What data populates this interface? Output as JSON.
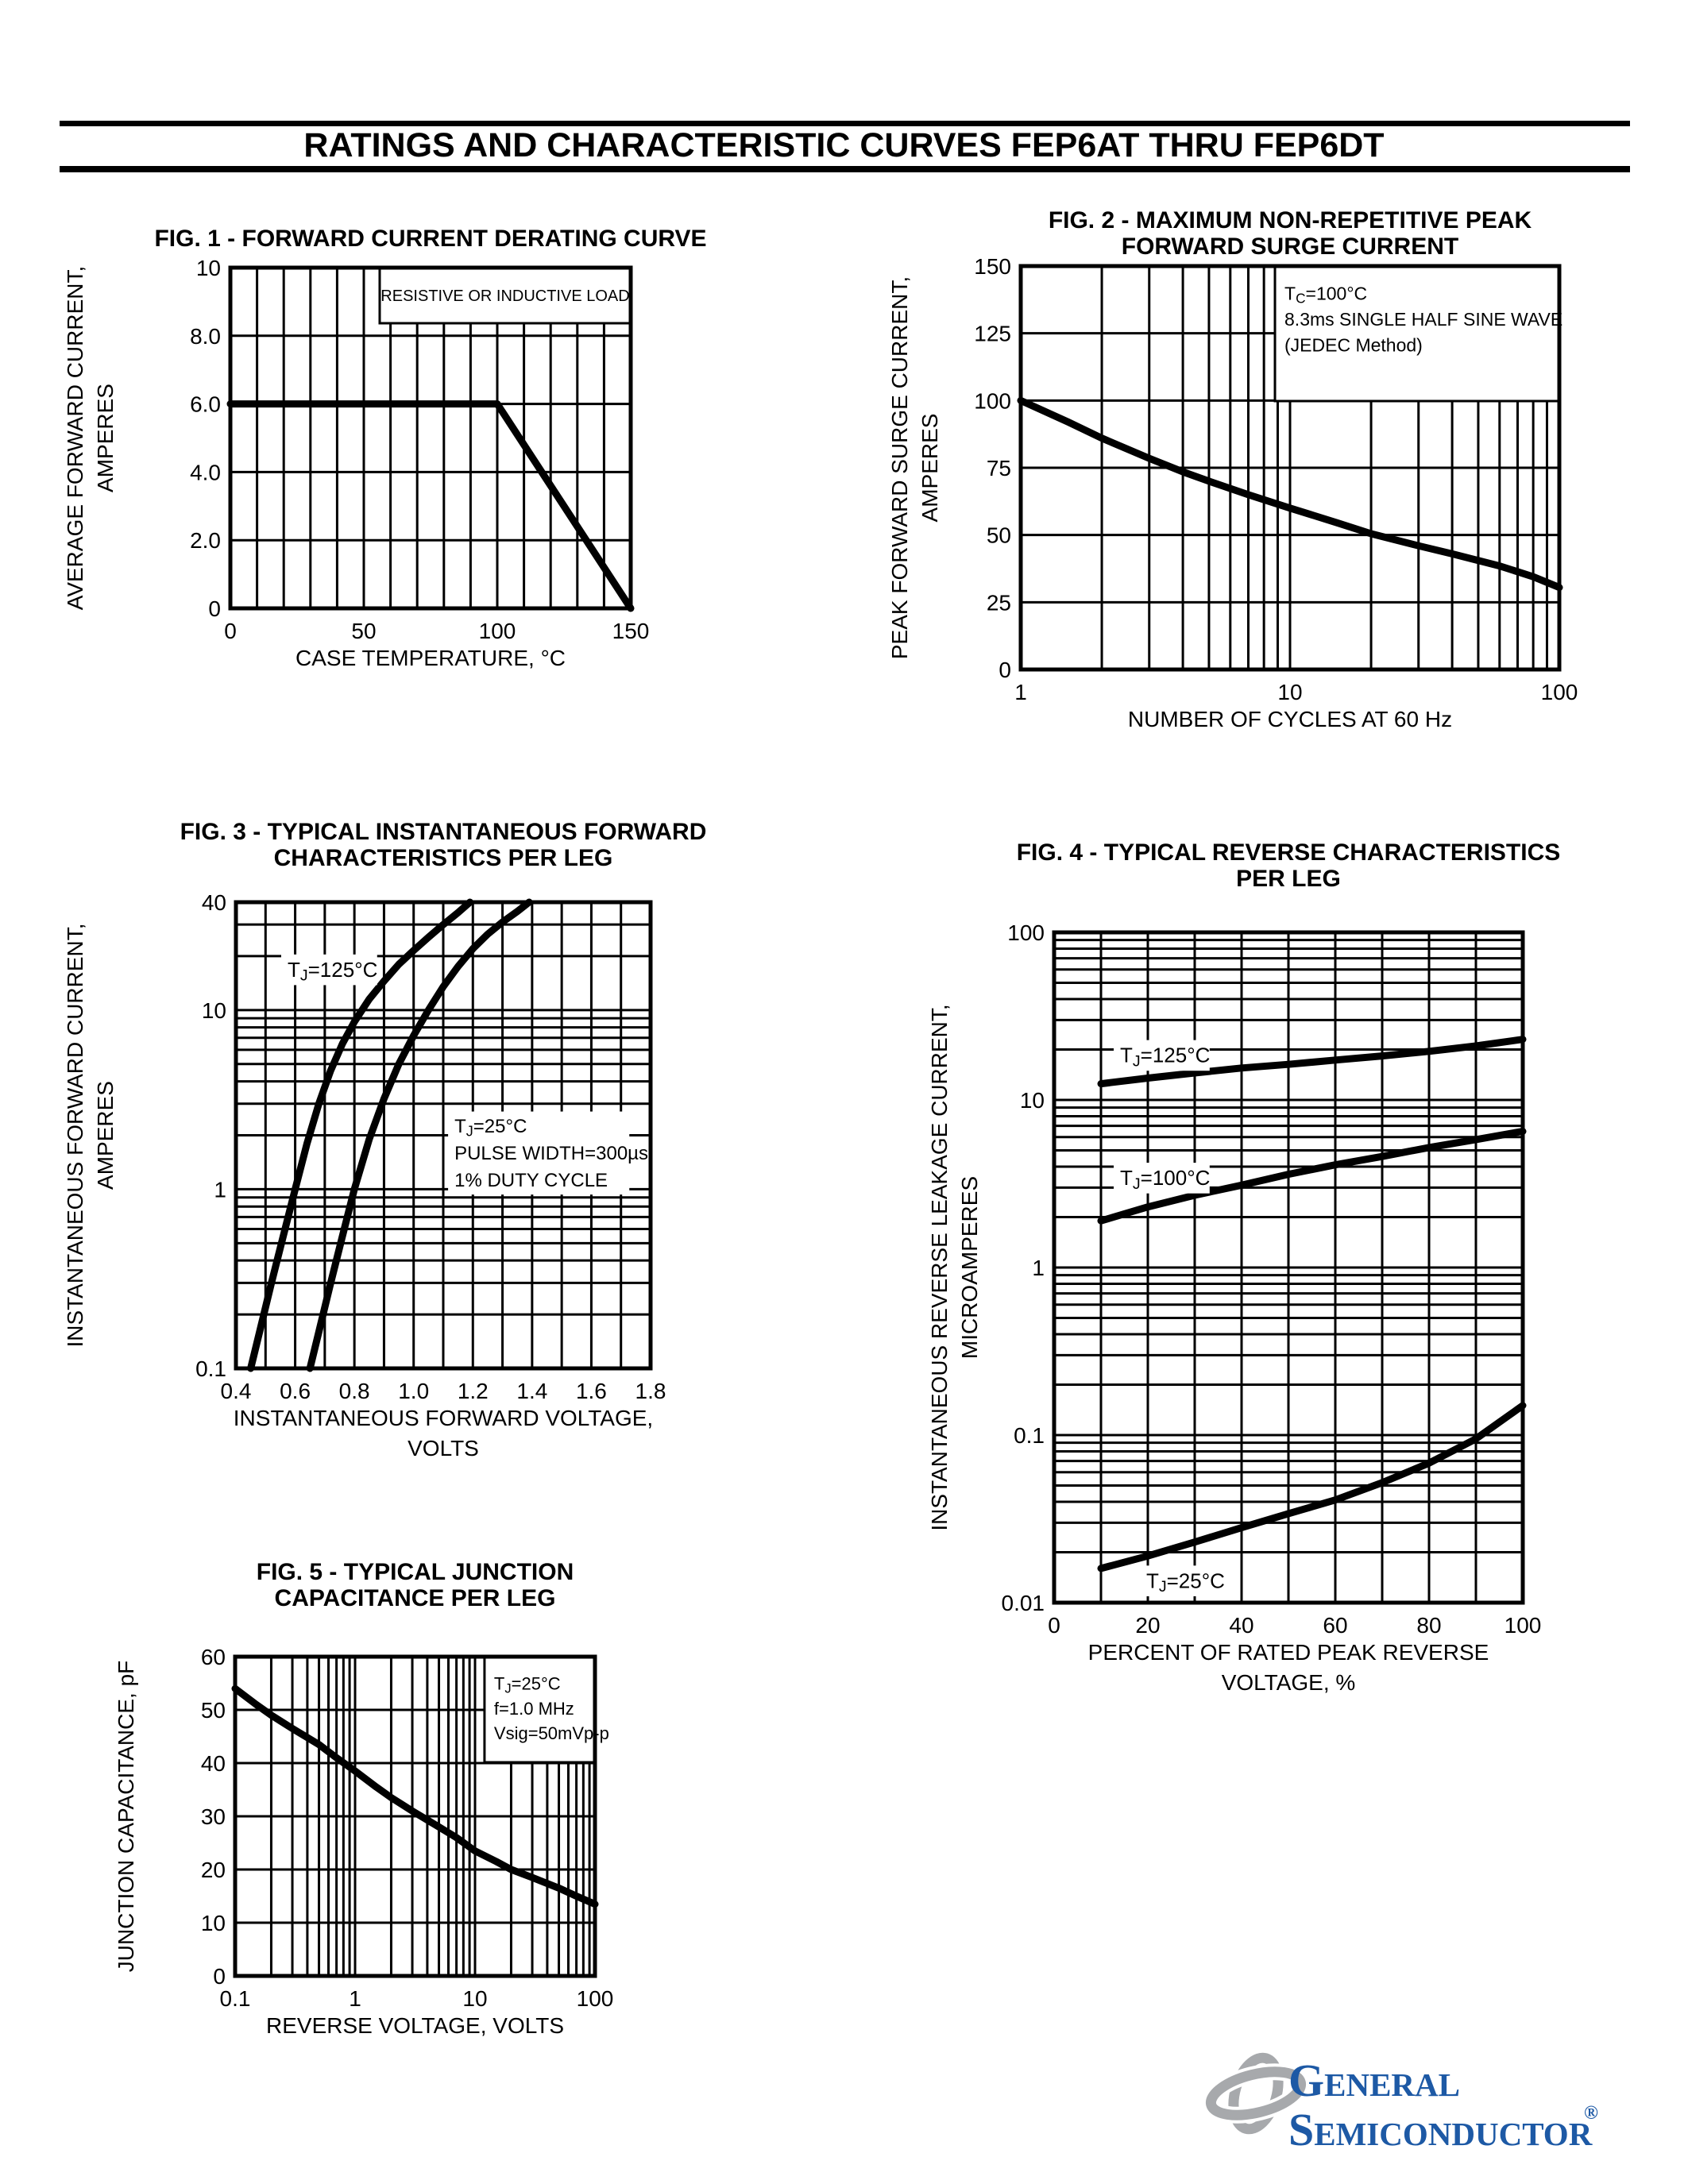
{
  "page": {
    "title": "RATINGS AND CHARACTERISTIC CURVES FEP6AT THRU FEP6DT"
  },
  "logo": {
    "line1": "General",
    "line2": "Semiconductor",
    "reg": "®",
    "text_color": "#1D59A5",
    "icon_color": "#A7A9AC",
    "icon_name": "general-semiconductor-emblem"
  },
  "chart_data": [
    {
      "id": "fig1",
      "name": "forward-current-derating-curve",
      "type": "line",
      "title_lines": [
        "FIG. 1 - FORWARD CURRENT DERATING CURVE"
      ],
      "x_axis": {
        "scale": "linear",
        "min": 0,
        "max": 150,
        "grid_step": 10,
        "label_lines": [
          "CASE TEMPERATURE, °C"
        ],
        "ticks": [
          {
            "v": 0,
            "label": "0"
          },
          {
            "v": 50,
            "label": "50"
          },
          {
            "v": 100,
            "label": "100"
          },
          {
            "v": 150,
            "label": "150"
          }
        ]
      },
      "y_axis": {
        "scale": "linear",
        "min": 0,
        "max": 10,
        "grid_step": 2,
        "label_lines": [
          "AVERAGE FORWARD CURRENT,",
          "AMPERES"
        ],
        "ticks": [
          {
            "v": 0,
            "label": "0"
          },
          {
            "v": 2,
            "label": "2.0"
          },
          {
            "v": 4,
            "label": "4.0"
          },
          {
            "v": 6,
            "label": "6.0"
          },
          {
            "v": 8,
            "label": "8.0"
          },
          {
            "v": 10,
            "label": "10"
          }
        ]
      },
      "grid": true,
      "legend": "none",
      "series": [
        {
          "name": "average-forward-current",
          "points": [
            [
              0,
              6
            ],
            [
              100,
              6
            ],
            [
              150,
              0
            ]
          ]
        }
      ],
      "annotations": [
        {
          "kind": "box",
          "fx": 0.373,
          "h": 70,
          "align": "center",
          "font": 20,
          "lines": [
            [
              {
                "t": "RESISTIVE OR INDUCTIVE LOAD"
              }
            ]
          ]
        }
      ]
    },
    {
      "id": "fig2",
      "name": "maximum-non-repetitive-peak-forward-surge-current",
      "type": "line",
      "title_lines": [
        "FIG. 2 - MAXIMUM NON-REPETITIVE PEAK",
        "FORWARD SURGE CURRENT"
      ],
      "x_axis": {
        "scale": "log",
        "min": 1,
        "max": 100,
        "label_lines": [
          "NUMBER OF CYCLES AT 60 Hz"
        ],
        "ticks": [
          {
            "v": 1,
            "label": "1"
          },
          {
            "v": 10,
            "label": "10"
          },
          {
            "v": 100,
            "label": "100"
          }
        ]
      },
      "y_axis": {
        "scale": "linear",
        "min": 0,
        "max": 150,
        "grid_step": 25,
        "label_lines": [
          "PEAK FORWARD SURGE CURRENT,",
          "AMPERES"
        ],
        "ticks": [
          {
            "v": 0,
            "label": "0"
          },
          {
            "v": 25,
            "label": "25"
          },
          {
            "v": 50,
            "label": "50"
          },
          {
            "v": 75,
            "label": "75"
          },
          {
            "v": 100,
            "label": "100"
          },
          {
            "v": 125,
            "label": "125"
          },
          {
            "v": 150,
            "label": "150"
          }
        ]
      },
      "grid": true,
      "legend": "none",
      "series": [
        {
          "name": "peak-forward-surge-current",
          "points": [
            [
              1,
              100
            ],
            [
              1.5,
              92
            ],
            [
              2,
              86
            ],
            [
              3,
              78.5
            ],
            [
              4,
              73.5
            ],
            [
              5,
              70
            ],
            [
              7,
              65
            ],
            [
              10,
              60
            ],
            [
              15,
              54.5
            ],
            [
              20,
              50.5
            ],
            [
              30,
              46
            ],
            [
              40,
              43
            ],
            [
              60,
              38.5
            ],
            [
              80,
              34.5
            ],
            [
              100,
              30.5
            ]
          ]
        }
      ],
      "annotations": [
        {
          "kind": "box",
          "fx": 0.472,
          "h": 170,
          "align": "left",
          "font": 23,
          "lines": [
            [
              {
                "t": "T"
              },
              {
                "t": "C",
                "sub": true
              },
              {
                "t": "=100°C"
              }
            ],
            [
              {
                "t": "8.3ms SINGLE HALF SINE WAVE"
              }
            ],
            [
              {
                "t": "(JEDEC Method)"
              }
            ]
          ]
        }
      ]
    },
    {
      "id": "fig3",
      "name": "typical-instantaneous-forward-characteristics",
      "type": "line",
      "title_lines": [
        "FIG. 3 - TYPICAL INSTANTANEOUS FORWARD",
        "CHARACTERISTICS PER LEG"
      ],
      "x_axis": {
        "scale": "linear",
        "min": 0.4,
        "max": 1.8,
        "grid_step": 0.1,
        "label_lines": [
          "INSTANTANEOUS FORWARD VOLTAGE,",
          "VOLTS"
        ],
        "ticks": [
          {
            "v": 0.4,
            "label": "0.4"
          },
          {
            "v": 0.6,
            "label": "0.6"
          },
          {
            "v": 0.8,
            "label": "0.8"
          },
          {
            "v": 1.0,
            "label": "1.0"
          },
          {
            "v": 1.2,
            "label": "1.2"
          },
          {
            "v": 1.4,
            "label": "1.4"
          },
          {
            "v": 1.6,
            "label": "1.6"
          },
          {
            "v": 1.8,
            "label": "1.8"
          }
        ]
      },
      "y_axis": {
        "scale": "log",
        "min": 0.1,
        "max": 40,
        "label_lines": [
          "INSTANTANEOUS FORWARD CURRENT,",
          "AMPERES"
        ],
        "ticks": [
          {
            "v": 0.1,
            "label": "0.1"
          },
          {
            "v": 1,
            "label": "1"
          },
          {
            "v": 10,
            "label": "10"
          },
          {
            "v": 40,
            "label": "40"
          }
        ]
      },
      "grid": true,
      "legend": "none",
      "series": [
        {
          "name": "tj-125c",
          "points": [
            [
              0.45,
              0.1
            ],
            [
              0.48,
              0.16
            ],
            [
              0.52,
              0.3
            ],
            [
              0.56,
              0.55
            ],
            [
              0.6,
              1.0
            ],
            [
              0.64,
              1.8
            ],
            [
              0.68,
              3.0
            ],
            [
              0.72,
              4.6
            ],
            [
              0.76,
              6.5
            ],
            [
              0.8,
              8.6
            ],
            [
              0.85,
              11.5
            ],
            [
              0.9,
              14.5
            ],
            [
              0.95,
              18
            ],
            [
              1.0,
              21.5
            ],
            [
              1.05,
              25.5
            ],
            [
              1.1,
              30
            ],
            [
              1.15,
              35
            ],
            [
              1.19,
              40
            ]
          ]
        },
        {
          "name": "tj-25c",
          "points": [
            [
              0.65,
              0.1
            ],
            [
              0.68,
              0.16
            ],
            [
              0.72,
              0.3
            ],
            [
              0.76,
              0.55
            ],
            [
              0.8,
              1.0
            ],
            [
              0.85,
              1.9
            ],
            [
              0.9,
              3.2
            ],
            [
              0.95,
              5.0
            ],
            [
              1.0,
              7.2
            ],
            [
              1.05,
              10
            ],
            [
              1.1,
              13.5
            ],
            [
              1.15,
              17.5
            ],
            [
              1.2,
              22
            ],
            [
              1.25,
              26.5
            ],
            [
              1.3,
              31
            ],
            [
              1.35,
              35.5
            ],
            [
              1.39,
              40
            ]
          ]
        }
      ],
      "annotations": [
        {
          "kind": "label",
          "fx": 0.1245,
          "fy": 0.16,
          "font": 26,
          "bg": true,
          "lines": [
            [
              {
                "t": "T"
              },
              {
                "t": "J",
                "sub": true
              },
              {
                "t": "=125°C"
              }
            ]
          ]
        },
        {
          "kind": "label",
          "fx": 0.527,
          "fy": 0.494,
          "font": 24,
          "bg": true,
          "lines": [
            [
              {
                "t": "T"
              },
              {
                "t": "J",
                "sub": true
              },
              {
                "t": "=25°C"
              }
            ],
            [
              {
                "t": "PULSE WIDTH=300µs"
              }
            ],
            [
              {
                "t": "1% DUTY CYCLE"
              }
            ]
          ]
        }
      ]
    },
    {
      "id": "fig4",
      "name": "typical-reverse-characteristics",
      "type": "line",
      "title_lines": [
        "FIG. 4 - TYPICAL REVERSE CHARACTERISTICS",
        "PER LEG"
      ],
      "x_axis": {
        "scale": "linear",
        "min": 0,
        "max": 100,
        "grid_step": 10,
        "label_lines": [
          "PERCENT OF RATED PEAK REVERSE",
          "VOLTAGE, %"
        ],
        "ticks": [
          {
            "v": 0,
            "label": "0"
          },
          {
            "v": 20,
            "label": "20"
          },
          {
            "v": 40,
            "label": "40"
          },
          {
            "v": 60,
            "label": "60"
          },
          {
            "v": 80,
            "label": "80"
          },
          {
            "v": 100,
            "label": "100"
          }
        ]
      },
      "y_axis": {
        "scale": "log",
        "min": 0.01,
        "max": 100,
        "label_lines": [
          "INSTANTANEOUS REVERSE LEAKAGE CURRENT,",
          "MICROAMPERES"
        ],
        "ticks": [
          {
            "v": 0.01,
            "label": "0.01"
          },
          {
            "v": 0.1,
            "label": "0.1"
          },
          {
            "v": 1,
            "label": "1"
          },
          {
            "v": 10,
            "label": "10"
          },
          {
            "v": 100,
            "label": "100"
          }
        ]
      },
      "grid": true,
      "legend": "none",
      "series": [
        {
          "name": "tj-125c",
          "points": [
            [
              10,
              12.5
            ],
            [
              20,
              13.5
            ],
            [
              30,
              14.5
            ],
            [
              40,
              15.5
            ],
            [
              50,
              16.3
            ],
            [
              60,
              17.3
            ],
            [
              70,
              18.3
            ],
            [
              80,
              19.5
            ],
            [
              90,
              21
            ],
            [
              100,
              23
            ]
          ]
        },
        {
          "name": "tj-100c",
          "points": [
            [
              10,
              1.9
            ],
            [
              20,
              2.3
            ],
            [
              30,
              2.7
            ],
            [
              40,
              3.1
            ],
            [
              50,
              3.6
            ],
            [
              60,
              4.1
            ],
            [
              70,
              4.6
            ],
            [
              80,
              5.2
            ],
            [
              90,
              5.8
            ],
            [
              100,
              6.5
            ]
          ]
        },
        {
          "name": "tj-25c",
          "points": [
            [
              10,
              0.016
            ],
            [
              20,
              0.019
            ],
            [
              30,
              0.023
            ],
            [
              40,
              0.028
            ],
            [
              50,
              0.034
            ],
            [
              60,
              0.041
            ],
            [
              70,
              0.052
            ],
            [
              80,
              0.068
            ],
            [
              90,
              0.095
            ],
            [
              100,
              0.15
            ]
          ]
        }
      ],
      "annotations": [
        {
          "kind": "label",
          "fx": 0.1407,
          "fy": 0.194,
          "font": 26,
          "bg": true,
          "lines": [
            [
              {
                "t": "T"
              },
              {
                "t": "J",
                "sub": true
              },
              {
                "t": "=125°C"
              }
            ]
          ]
        },
        {
          "kind": "label",
          "fx": 0.1407,
          "fy": 0.377,
          "font": 26,
          "bg": true,
          "lines": [
            [
              {
                "t": "T"
              },
              {
                "t": "J",
                "sub": true
              },
              {
                "t": "=100°C"
              }
            ]
          ]
        },
        {
          "kind": "label",
          "fx": 0.1966,
          "fy": 0.978,
          "font": 26,
          "bg": true,
          "lines": [
            [
              {
                "t": "T"
              },
              {
                "t": "J",
                "sub": true
              },
              {
                "t": "=25°C"
              }
            ]
          ]
        }
      ]
    },
    {
      "id": "fig5",
      "name": "typical-junction-capacitance",
      "type": "line",
      "title_lines": [
        "FIG. 5 - TYPICAL JUNCTION",
        "CAPACITANCE PER LEG"
      ],
      "x_axis": {
        "scale": "log",
        "min": 0.1,
        "max": 100,
        "label_lines": [
          "REVERSE VOLTAGE, VOLTS"
        ],
        "ticks": [
          {
            "v": 0.1,
            "label": "0.1"
          },
          {
            "v": 1,
            "label": "1"
          },
          {
            "v": 10,
            "label": "10"
          },
          {
            "v": 100,
            "label": "100"
          }
        ]
      },
      "y_axis": {
        "scale": "linear",
        "min": 0,
        "max": 60,
        "grid_step": 10,
        "label_lines": [
          "JUNCTION CAPACITANCE, pF"
        ],
        "ticks": [
          {
            "v": 0,
            "label": "0"
          },
          {
            "v": 10,
            "label": "10"
          },
          {
            "v": 20,
            "label": "20"
          },
          {
            "v": 30,
            "label": "30"
          },
          {
            "v": 40,
            "label": "40"
          },
          {
            "v": 50,
            "label": "50"
          },
          {
            "v": 60,
            "label": "60"
          }
        ]
      },
      "grid": true,
      "legend": "none",
      "series": [
        {
          "name": "junction-capacitance",
          "points": [
            [
              0.1,
              54
            ],
            [
              0.15,
              51
            ],
            [
              0.2,
              49
            ],
            [
              0.3,
              46.5
            ],
            [
              0.5,
              43.5
            ],
            [
              0.7,
              41
            ],
            [
              1,
              38.5
            ],
            [
              1.5,
              35.5
            ],
            [
              2,
              33.5
            ],
            [
              3,
              31
            ],
            [
              5,
              28
            ],
            [
              7,
              26
            ],
            [
              10,
              23.5
            ],
            [
              15,
              21.5
            ],
            [
              20,
              20
            ],
            [
              30,
              18.5
            ],
            [
              50,
              16.5
            ],
            [
              70,
              15
            ],
            [
              100,
              13.5
            ]
          ]
        }
      ],
      "annotations": [
        {
          "kind": "box",
          "fx": 0.693,
          "h": 133,
          "align": "left",
          "font": 22,
          "lines": [
            [
              {
                "t": "T"
              },
              {
                "t": "J",
                "sub": true
              },
              {
                "t": "=25°C"
              }
            ],
            [
              {
                "t": "f=1.0 MHz"
              }
            ],
            [
              {
                "t": "Vsig=50mVp-p"
              }
            ]
          ]
        }
      ]
    }
  ]
}
